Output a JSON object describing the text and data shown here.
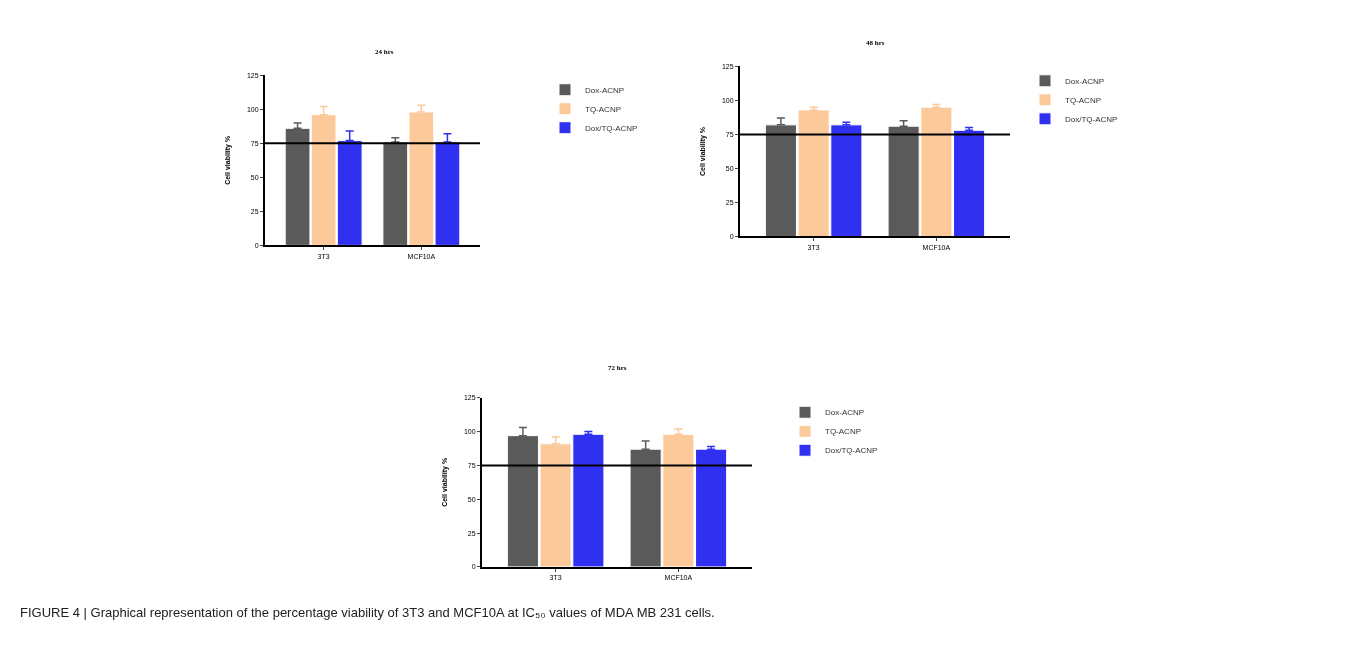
{
  "chart_data": [
    {
      "type": "bar",
      "title": "24 hrs",
      "ylabel": "Cell viability %",
      "categories": [
        "3T3",
        "MCF10A"
      ],
      "ylim": [
        0,
        125
      ],
      "yticks": [
        0,
        25,
        50,
        75,
        100,
        125
      ],
      "legend": "right",
      "series": [
        {
          "name": "Dox-ACNP",
          "color": "#5a5a5a",
          "values": [
            86,
            76
          ],
          "errors": [
            [
              86,
              90
            ],
            [
              76,
              79
            ]
          ]
        },
        {
          "name": "TQ-ACNP",
          "color": "#fbc99a",
          "values": [
            96,
            98
          ],
          "errors": [
            [
              96,
              102
            ],
            [
              98,
              103
            ]
          ]
        },
        {
          "name": "Dox/TQ-ACNP",
          "color": "#3030f0",
          "values": [
            77,
            76
          ],
          "errors": [
            [
              77,
              84
            ],
            [
              76,
              82
            ]
          ]
        }
      ],
      "ref_lines": [
        {
          "axis": "y",
          "value": 75,
          "color": "#000000"
        }
      ]
    },
    {
      "type": "bar",
      "title": "48 hrs",
      "ylabel": "Cell viability %",
      "categories": [
        "3T3",
        "MCF10A"
      ],
      "ylim": [
        0,
        125
      ],
      "yticks": [
        0,
        25,
        50,
        75,
        100,
        125
      ],
      "legend": "right",
      "series": [
        {
          "name": "Dox-ACNP",
          "color": "#5a5a5a",
          "values": [
            82,
            81
          ],
          "errors": [
            [
              82,
              87
            ],
            [
              81,
              85
            ]
          ]
        },
        {
          "name": "TQ-ACNP",
          "color": "#fbc99a",
          "values": [
            93,
            95
          ],
          "errors": [
            [
              93,
              95
            ],
            [
              95,
              97
            ]
          ]
        },
        {
          "name": "Dox/TQ-ACNP",
          "color": "#3030f0",
          "values": [
            82,
            78
          ],
          "errors": [
            [
              82,
              84
            ],
            [
              78,
              80
            ]
          ]
        }
      ],
      "ref_lines": [
        {
          "axis": "y",
          "value": 75,
          "color": "#000000"
        }
      ]
    },
    {
      "type": "bar",
      "title": "72 hrs",
      "ylabel": "Cell viability %",
      "categories": [
        "3T3",
        "MCF10A"
      ],
      "ylim": [
        0,
        125
      ],
      "yticks": [
        0,
        25,
        50,
        75,
        100,
        125
      ],
      "legend": "right",
      "series": [
        {
          "name": "Dox-ACNP",
          "color": "#5a5a5a",
          "values": [
            97,
            87
          ],
          "errors": [
            [
              97,
              103
            ],
            [
              87,
              93
            ]
          ]
        },
        {
          "name": "TQ-ACNP",
          "color": "#fbc99a",
          "values": [
            91,
            98
          ],
          "errors": [
            [
              91,
              96
            ],
            [
              98,
              102
            ]
          ]
        },
        {
          "name": "Dox/TQ-ACNP",
          "color": "#3030f0",
          "values": [
            98,
            87
          ],
          "errors": [
            [
              98,
              100
            ],
            [
              87,
              89
            ]
          ]
        }
      ],
      "ref_lines": [
        {
          "axis": "y",
          "value": 75,
          "color": "#000000"
        }
      ],
      "annotations": [
        "FIGURE 4 | Graphical representation of the percentage viability of 3T3 and MCF10A at IC₅₀ values of MDA MB 231 cells."
      ]
    }
  ]
}
